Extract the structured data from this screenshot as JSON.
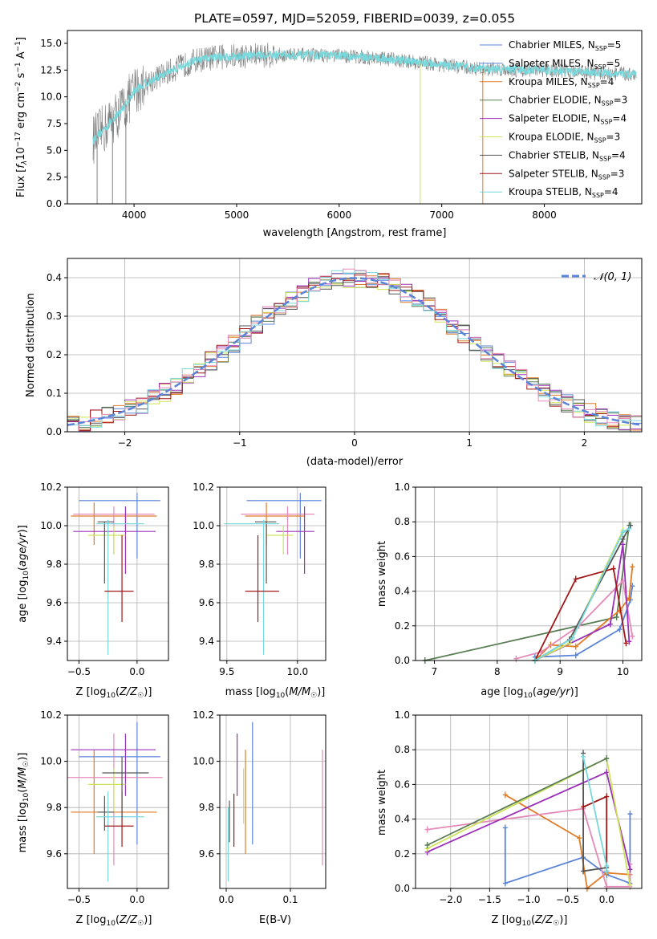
{
  "colors": {
    "chabrier_miles": "#5b84d8",
    "salpeter_miles": "#5b84d8",
    "kroupa_miles": "#e07b27",
    "chabrier_elodie": "#5a7d55",
    "salpeter_elodie": "#9b30b8",
    "kroupa_elodie": "#cfe35a",
    "chabrier_stelib": "#555555",
    "salpeter_stelib": "#a01818",
    "kroupa_stelib": "#78d8dc",
    "data": "#808080",
    "pink": "#e58ab8"
  },
  "chart_data": [
    {
      "id": "spectrum",
      "type": "line",
      "title": "PLATE=0597, MJD=52059, FIBERID=0039, z=0.055",
      "xlabel": "wavelength [Angstrom, rest frame]",
      "ylabel": "Flux [fλ10⁻¹⁷ erg cm⁻² s⁻¹ A⁻¹]",
      "xlim": [
        3350,
        8950
      ],
      "ylim": [
        0,
        16.2
      ],
      "xticks": [
        "4000",
        "5000",
        "6000",
        "7000",
        "8000"
      ],
      "yticks": [
        "0.0",
        "2.5",
        "5.0",
        "7.5",
        "10.0",
        "12.5",
        "15.0"
      ],
      "legend": [
        {
          "label": "Chabrier MILES, N",
          "sub": "SSP",
          "suffix": "=5",
          "color": "#5b84d8"
        },
        {
          "label": "Salpeter MILES, N",
          "sub": "SSP",
          "suffix": "=5",
          "color": "#5b84d8"
        },
        {
          "label": "Kroupa MILES, N",
          "sub": "SSP",
          "suffix": "=4",
          "color": "#e07b27"
        },
        {
          "label": "Chabrier ELODIE, N",
          "sub": "SSP",
          "suffix": "=3",
          "color": "#5a7d55"
        },
        {
          "label": "Salpeter ELODIE, N",
          "sub": "SSP",
          "suffix": "=4",
          "color": "#9b30b8"
        },
        {
          "label": "Kroupa ELODIE, N",
          "sub": "SSP",
          "suffix": "=3",
          "color": "#cfe35a"
        },
        {
          "label": "Chabrier STELIB, N",
          "sub": "SSP",
          "suffix": "=4",
          "color": "#555555"
        },
        {
          "label": "Salpeter STELIB, N",
          "sub": "SSP",
          "suffix": "=3",
          "color": "#a01818"
        },
        {
          "label": "Kroupa STELIB, N",
          "sub": "SSP",
          "suffix": "=4",
          "color": "#78d8dc"
        }
      ],
      "continuum": {
        "x": [
          3600,
          3700,
          3800,
          3900,
          4000,
          4100,
          4200,
          4400,
          4600,
          4800,
          5000,
          5200,
          5500,
          5800,
          6100,
          6400,
          6700,
          7000,
          7200,
          7400,
          7600,
          7800,
          8000,
          8200,
          8400,
          8600,
          8900
        ],
        "y": [
          6.0,
          6.9,
          8.0,
          9.0,
          10.5,
          11.2,
          11.7,
          12.6,
          13.4,
          13.7,
          13.8,
          13.9,
          13.9,
          13.9,
          13.8,
          13.6,
          13.3,
          13.0,
          12.8,
          12.6,
          12.6,
          12.5,
          12.5,
          12.4,
          12.3,
          12.2,
          12.1
        ]
      }
    },
    {
      "id": "residuals",
      "type": "histogram",
      "xlabel": "(data-model)/error",
      "ylabel": "Normed distribution",
      "xlim": [
        -2.5,
        2.5
      ],
      "ylim": [
        0,
        0.45
      ],
      "xticks": [
        "−2",
        "−1",
        "0",
        "1",
        "2"
      ],
      "yticks": [
        "0.0",
        "0.1",
        "0.2",
        "0.3",
        "0.4"
      ],
      "legend": [
        {
          "label": "𝒩(0, 1)",
          "color": "#5b84d8"
        }
      ],
      "normal": {
        "mu": 0,
        "sigma": 1
      }
    },
    {
      "id": "age_vs_Z",
      "type": "errorbar",
      "xlabel": "Z [log₁₀(Z/Z☉)]",
      "ylabel": "age  [log₁₀(age/yr)]",
      "xlim": [
        -0.6,
        0.27
      ],
      "ylim": [
        9.3,
        10.2
      ],
      "xticks": [
        {
          "v": -0.5,
          "t": "−0.5"
        },
        {
          "v": 0.0,
          "t": "0.0"
        }
      ],
      "yticks": [
        {
          "v": 9.4,
          "t": "9.4"
        },
        {
          "v": 9.6,
          "t": "9.6"
        },
        {
          "v": 9.8,
          "t": "9.8"
        },
        {
          "v": 10.0,
          "t": "10.0"
        },
        {
          "v": 10.2,
          "t": "10.2"
        }
      ],
      "points": [
        {
          "x": 0.0,
          "xl": -0.5,
          "xh": 0.2,
          "y": 10.13,
          "yl": 9.83,
          "yh": 10.17,
          "c": "#5b84d8"
        },
        {
          "x": -0.37,
          "xl": -0.57,
          "xh": 0.17,
          "y": 10.05,
          "yl": 9.9,
          "yh": 10.12,
          "c": "#e07b27"
        },
        {
          "x": -0.2,
          "xl": -0.55,
          "xh": 0.15,
          "y": 10.06,
          "yl": 9.85,
          "yh": 10.1,
          "c": "#e58ab8"
        },
        {
          "x": -0.1,
          "xl": -0.55,
          "xh": 0.16,
          "y": 9.97,
          "yl": 9.75,
          "yh": 10.1,
          "c": "#9b30b8"
        },
        {
          "x": -0.2,
          "xl": -0.42,
          "xh": -0.1,
          "y": 9.95,
          "yl": 9.85,
          "yh": 10.0,
          "c": "#cfe35a"
        },
        {
          "x": -0.28,
          "xl": -0.34,
          "xh": -0.2,
          "y": 10.02,
          "yl": 9.7,
          "yh": 10.02,
          "c": "#555555"
        },
        {
          "x": -0.25,
          "xl": -0.35,
          "xh": 0.06,
          "y": 10.01,
          "yl": 9.33,
          "yh": 10.03,
          "c": "#78d8dc"
        },
        {
          "x": -0.13,
          "xl": -0.28,
          "xh": -0.03,
          "y": 9.66,
          "yl": 9.5,
          "yh": 9.95,
          "c": "#a01818"
        }
      ]
    },
    {
      "id": "age_vs_mass",
      "type": "errorbar",
      "xlabel": "mass [log₁₀(M/M☉)]",
      "ylabel": "",
      "xlim": [
        9.45,
        10.2
      ],
      "ylim": [
        9.3,
        10.2
      ],
      "xticks": [
        {
          "v": 9.5,
          "t": "9.5"
        },
        {
          "v": 10.0,
          "t": "10.0"
        }
      ],
      "yticks": [
        {
          "v": 9.4,
          "t": "9.4"
        },
        {
          "v": 9.6,
          "t": "9.6"
        },
        {
          "v": 9.8,
          "t": "9.8"
        },
        {
          "v": 10.0,
          "t": "10.0"
        },
        {
          "v": 10.2,
          "t": "10.2"
        }
      ],
      "points": [
        {
          "x": 10.02,
          "xl": 9.64,
          "xh": 10.17,
          "y": 10.13,
          "yl": 9.83,
          "yh": 10.17,
          "c": "#5b84d8"
        },
        {
          "x": 9.78,
          "xl": 9.63,
          "xh": 10.05,
          "y": 10.05,
          "yl": 9.9,
          "yh": 10.12,
          "c": "#e07b27"
        },
        {
          "x": 9.93,
          "xl": 9.6,
          "xh": 10.12,
          "y": 10.06,
          "yl": 9.85,
          "yh": 10.1,
          "c": "#e58ab8"
        },
        {
          "x": 10.05,
          "xl": 9.85,
          "xh": 10.12,
          "y": 9.97,
          "yl": 9.75,
          "yh": 10.1,
          "c": "#9b30b8"
        },
        {
          "x": 9.9,
          "xl": 9.78,
          "xh": 9.97,
          "y": 9.95,
          "yl": 9.85,
          "yh": 10.0,
          "c": "#cfe35a"
        },
        {
          "x": 9.78,
          "xl": 9.7,
          "xh": 9.85,
          "y": 10.02,
          "yl": 9.7,
          "yh": 10.02,
          "c": "#555555"
        },
        {
          "x": 9.76,
          "xl": 9.48,
          "xh": 9.87,
          "y": 10.01,
          "yl": 9.33,
          "yh": 10.03,
          "c": "#78d8dc"
        },
        {
          "x": 9.72,
          "xl": 9.63,
          "xh": 9.87,
          "y": 9.66,
          "yl": 9.5,
          "yh": 9.95,
          "c": "#a01818"
        }
      ]
    },
    {
      "id": "weight_vs_age",
      "type": "line",
      "xlabel": "age  [log₁₀(age/yr)]",
      "ylabel": "mass weight",
      "xlim": [
        6.7,
        10.3
      ],
      "ylim": [
        0,
        1
      ],
      "xticks": [
        {
          "v": 7,
          "t": "7"
        },
        {
          "v": 8,
          "t": "8"
        },
        {
          "v": 9,
          "t": "9"
        },
        {
          "v": 10,
          "t": "10"
        }
      ],
      "yticks": [
        {
          "v": 0,
          "t": "0.0"
        },
        {
          "v": 0.2,
          "t": "0.2"
        },
        {
          "v": 0.4,
          "t": "0.4"
        },
        {
          "v": 0.6,
          "t": "0.6"
        },
        {
          "v": 0.8,
          "t": "0.8"
        },
        {
          "v": 1.0,
          "t": "1.0"
        }
      ],
      "series": [
        {
          "c": "#5a7d55",
          "x": [
            6.85,
            9.9,
            10.1
          ],
          "y": [
            0.0,
            0.25,
            0.78
          ]
        },
        {
          "c": "#5b84d8",
          "x": [
            8.6,
            9.25,
            9.95,
            10.12,
            10.15
          ],
          "y": [
            0.02,
            0.03,
            0.18,
            0.35,
            0.43
          ]
        },
        {
          "c": "#e07b27",
          "x": [
            8.6,
            8.85,
            9.25,
            9.95,
            10.1,
            10.15
          ],
          "y": [
            0.0,
            0.09,
            0.08,
            0.29,
            0.36,
            0.54
          ]
        },
        {
          "c": "#e58ab8",
          "x": [
            8.3,
            8.7,
            9.3,
            10.0,
            10.15
          ],
          "y": [
            0.01,
            0.05,
            0.2,
            0.46,
            0.14
          ]
        },
        {
          "c": "#9b30b8",
          "x": [
            8.6,
            9.8,
            10.0,
            10.1
          ],
          "y": [
            0.0,
            0.21,
            0.67,
            0.11
          ]
        },
        {
          "c": "#cfe35a",
          "x": [
            8.6,
            9.15,
            10.0
          ],
          "y": [
            0.0,
            0.1,
            0.75
          ]
        },
        {
          "c": "#555555",
          "x": [
            8.6,
            9.15,
            10.0,
            10.12
          ],
          "y": [
            0.0,
            0.12,
            0.7,
            0.78
          ]
        },
        {
          "c": "#a01818",
          "x": [
            8.6,
            9.25,
            9.85,
            10.05
          ],
          "y": [
            0.0,
            0.47,
            0.53,
            0.1
          ]
        },
        {
          "c": "#78d8dc",
          "x": [
            8.6,
            9.2,
            10.0,
            10.1
          ],
          "y": [
            0.0,
            0.13,
            0.74,
            0.76
          ]
        }
      ]
    },
    {
      "id": "mass_vs_Z",
      "type": "errorbar",
      "xlabel": "Z [log₁₀(Z/Z☉)]",
      "ylabel": "mass [log₁₀(M/M☉)]",
      "xlim": [
        -0.6,
        0.27
      ],
      "ylim": [
        9.45,
        10.2
      ],
      "xticks": [
        {
          "v": -0.5,
          "t": "−0.5"
        },
        {
          "v": 0.0,
          "t": "0.0"
        }
      ],
      "yticks": [
        {
          "v": 9.6,
          "t": "9.6"
        },
        {
          "v": 9.8,
          "t": "9.8"
        },
        {
          "v": 10.0,
          "t": "10.0"
        },
        {
          "v": 10.2,
          "t": "10.2"
        }
      ],
      "points": [
        {
          "x": 0.0,
          "xl": -0.5,
          "xh": 0.2,
          "y": 10.02,
          "yl": 9.64,
          "yh": 10.17,
          "c": "#5b84d8"
        },
        {
          "x": -0.37,
          "xl": -0.57,
          "xh": 0.17,
          "y": 9.78,
          "yl": 9.6,
          "yh": 10.05,
          "c": "#e07b27"
        },
        {
          "x": -0.2,
          "xl": -0.6,
          "xh": 0.22,
          "y": 9.93,
          "yl": 9.55,
          "yh": 10.12,
          "c": "#e58ab8"
        },
        {
          "x": -0.1,
          "xl": -0.57,
          "xh": 0.16,
          "y": 10.05,
          "yl": 9.85,
          "yh": 10.12,
          "c": "#9b30b8"
        },
        {
          "x": -0.2,
          "xl": -0.42,
          "xh": -0.1,
          "y": 9.9,
          "yl": 9.78,
          "yh": 9.97,
          "c": "#cfe35a"
        },
        {
          "x": -0.28,
          "xl": -0.34,
          "xh": -0.2,
          "y": 9.78,
          "yl": 9.7,
          "yh": 9.85,
          "c": "#555555"
        },
        {
          "x": -0.25,
          "xl": -0.35,
          "xh": 0.06,
          "y": 9.76,
          "yl": 9.48,
          "yh": 9.87,
          "c": "#78d8dc"
        },
        {
          "x": -0.13,
          "xl": -0.28,
          "xh": -0.03,
          "y": 9.72,
          "yl": 9.63,
          "yh": 9.87,
          "c": "#a01818"
        },
        {
          "x": -0.13,
          "xl": -0.3,
          "xh": 0.1,
          "y": 9.95,
          "yl": 9.75,
          "yh": 10.02,
          "c": "#555555"
        }
      ]
    },
    {
      "id": "mass_vs_EBV",
      "type": "errorbar",
      "xlabel": "E(B-V)",
      "ylabel": "",
      "xlim": [
        -0.01,
        0.155
      ],
      "ylim": [
        9.45,
        10.2
      ],
      "xticks": [
        {
          "v": 0.0,
          "t": "0.0"
        },
        {
          "v": 0.1,
          "t": "0.1"
        }
      ],
      "yticks": [
        {
          "v": 9.6,
          "t": "9.6"
        },
        {
          "v": 9.8,
          "t": "9.8"
        },
        {
          "v": 10.0,
          "t": "10.0"
        },
        {
          "v": 10.2,
          "t": "10.2"
        }
      ],
      "points": [
        {
          "x": 0.041,
          "y": 10.02,
          "yl": 9.64,
          "yh": 10.17,
          "c": "#5b84d8"
        },
        {
          "x": 0.03,
          "y": 9.78,
          "yl": 9.6,
          "yh": 10.05,
          "c": "#e07b27"
        },
        {
          "x": 0.15,
          "y": 9.78,
          "yl": 9.55,
          "yh": 10.05,
          "c": "#e58ab8"
        },
        {
          "x": 0.017,
          "y": 10.05,
          "yl": 9.85,
          "yh": 10.12,
          "c": "#9b30b8"
        },
        {
          "x": 0.027,
          "y": 9.88,
          "yl": 9.73,
          "yh": 9.97,
          "c": "#cfe35a"
        },
        {
          "x": 0.005,
          "y": 9.76,
          "yl": 9.65,
          "yh": 9.83,
          "c": "#555555"
        },
        {
          "x": 0.003,
          "y": 9.6,
          "yl": 9.48,
          "yh": 9.8,
          "c": "#78d8dc"
        },
        {
          "x": 0.012,
          "y": 9.75,
          "yl": 9.63,
          "yh": 9.86,
          "c": "#a01818"
        }
      ]
    },
    {
      "id": "weight_vs_Z",
      "type": "line",
      "xlabel": "Z [log₁₀(Z/Z☉)]",
      "ylabel": "mass weight",
      "xlim": [
        -2.45,
        0.45
      ],
      "ylim": [
        0,
        1
      ],
      "xticks": [
        {
          "v": -2.0,
          "t": "−2.0"
        },
        {
          "v": -1.5,
          "t": "−1.5"
        },
        {
          "v": -1.0,
          "t": "−1.0"
        },
        {
          "v": -0.5,
          "t": "−0.5"
        },
        {
          "v": 0.0,
          "t": "0.0"
        }
      ],
      "yticks": [
        {
          "v": 0,
          "t": "0.0"
        },
        {
          "v": 0.2,
          "t": "0.2"
        },
        {
          "v": 0.4,
          "t": "0.4"
        },
        {
          "v": 0.6,
          "t": "0.6"
        },
        {
          "v": 0.8,
          "t": "0.8"
        },
        {
          "v": 1.0,
          "t": "1.0"
        }
      ],
      "series": [
        {
          "c": "#5b84d8",
          "x": [
            -1.3,
            -1.3,
            -0.3,
            0.0,
            0.3,
            0.3
          ],
          "y": [
            0.35,
            0.03,
            0.18,
            0.08,
            0.03,
            0.43
          ]
        },
        {
          "c": "#e07b27",
          "x": [
            -1.3,
            -0.35,
            -0.25,
            0.0,
            0.3
          ],
          "y": [
            0.54,
            0.29,
            0.0,
            0.09,
            0.08
          ]
        },
        {
          "c": "#e58ab8",
          "x": [
            -2.3,
            -0.3,
            0.0,
            0.3,
            0.3
          ],
          "y": [
            0.34,
            0.46,
            0.01,
            0.01,
            0.14
          ]
        },
        {
          "c": "#9b30b8",
          "x": [
            -2.3,
            0.0,
            0.3
          ],
          "y": [
            0.21,
            0.67,
            0.11
          ]
        },
        {
          "c": "#cfe35a",
          "x": [
            -2.3,
            0.0,
            0.3
          ],
          "y": [
            0.23,
            0.75,
            0.02
          ]
        },
        {
          "c": "#5a7d55",
          "x": [
            -2.3,
            0.0
          ],
          "y": [
            0.25,
            0.75
          ]
        },
        {
          "c": "#555555",
          "x": [
            -0.3,
            -0.3,
            0.0
          ],
          "y": [
            0.78,
            0.1,
            0.12
          ]
        },
        {
          "c": "#a01818",
          "x": [
            -0.3,
            0.0,
            0.0
          ],
          "y": [
            0.47,
            0.53,
            0.1
          ]
        },
        {
          "c": "#78d8dc",
          "x": [
            -0.3,
            0.0,
            0.0
          ],
          "y": [
            0.76,
            0.13,
            0.1
          ]
        }
      ]
    }
  ]
}
